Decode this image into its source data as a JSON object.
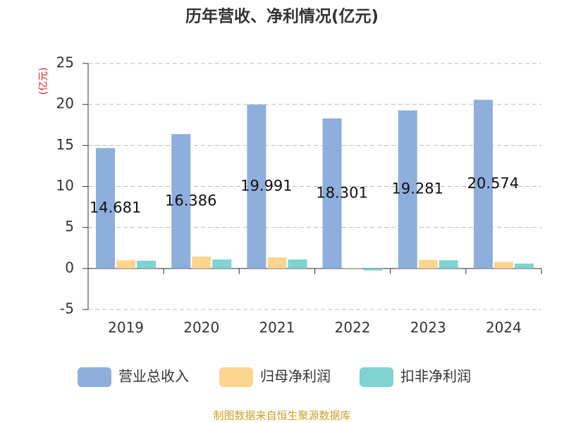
{
  "chart_data": {
    "type": "bar",
    "title": "历年营收、净利情况(亿元)",
    "y_label": "(亿元)",
    "source": "制图数据来自恒生聚源数据库",
    "categories": [
      "2019",
      "2020",
      "2021",
      "2022",
      "2023",
      "2024"
    ],
    "series": [
      {
        "name": "营业总收入",
        "color": "#8eaedc",
        "values": [
          14.681,
          16.386,
          19.991,
          18.301,
          19.281,
          20.574
        ]
      },
      {
        "name": "归母净利润",
        "color": "#fdd58e",
        "values": [
          1.0,
          1.45,
          1.35,
          0.05,
          1.05,
          0.8
        ]
      },
      {
        "name": "扣非净利润",
        "color": "#7fd3d3",
        "values": [
          0.95,
          1.1,
          1.1,
          -0.25,
          1.0,
          0.6
        ]
      }
    ],
    "ylim": [
      -5,
      25
    ],
    "yticks": [
      -5,
      0,
      5,
      10,
      15,
      20,
      25
    ],
    "grid": true
  }
}
